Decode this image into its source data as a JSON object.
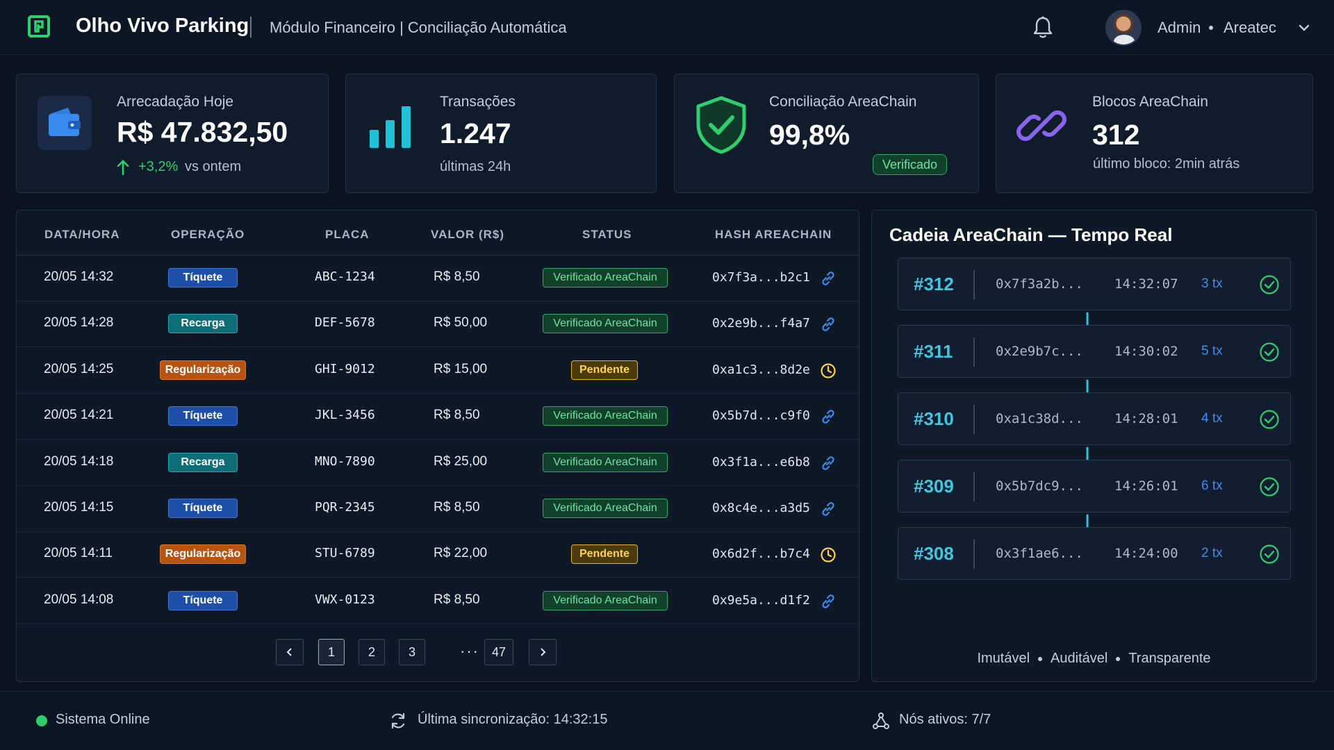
{
  "header": {
    "app_title": "Olho Vivo Parking",
    "subtitle": "Módulo Financeiro | Conciliação Automática",
    "user_name": "Admin",
    "user_org": "Areatec"
  },
  "kpis": {
    "revenue": {
      "label": "Arrecadação Hoje",
      "value": "R$ 47.832,50",
      "delta": "+3,2%",
      "delta_suffix": "vs ontem"
    },
    "transactions": {
      "label": "Transações",
      "value": "1.247",
      "sub": "últimas 24h"
    },
    "reconciliation": {
      "label": "Conciliação AreaChain",
      "value": "99,8%",
      "badge": "Verificado"
    },
    "blocks": {
      "label": "Blocos AreaChain",
      "value": "312",
      "sub": "último bloco: 2min atrás"
    }
  },
  "table": {
    "headers": [
      "DATA/HORA",
      "OPERAÇÃO",
      "PLACA",
      "VALOR (R$)",
      "STATUS",
      "HASH AREACHAIN"
    ],
    "rows": [
      {
        "datetime": "20/05 14:32",
        "operation": "Tíquete",
        "plate": "ABC-1234",
        "value": "R$ 8,50",
        "status": "Verificado AreaChain",
        "hash": "0x7f3a...b2c1"
      },
      {
        "datetime": "20/05 14:28",
        "operation": "Recarga",
        "plate": "DEF-5678",
        "value": "R$ 50,00",
        "status": "Verificado AreaChain",
        "hash": "0x2e9b...f4a7"
      },
      {
        "datetime": "20/05 14:25",
        "operation": "Regularização",
        "plate": "GHI-9012",
        "value": "R$ 15,00",
        "status": "Pendente",
        "hash": "0xa1c3...8d2e"
      },
      {
        "datetime": "20/05 14:21",
        "operation": "Tíquete",
        "plate": "JKL-3456",
        "value": "R$ 8,50",
        "status": "Verificado AreaChain",
        "hash": "0x5b7d...c9f0"
      },
      {
        "datetime": "20/05 14:18",
        "operation": "Recarga",
        "plate": "MNO-7890",
        "value": "R$ 25,00",
        "status": "Verificado AreaChain",
        "hash": "0x3f1a...e6b8"
      },
      {
        "datetime": "20/05 14:15",
        "operation": "Tíquete",
        "plate": "PQR-2345",
        "value": "R$ 8,50",
        "status": "Verificado AreaChain",
        "hash": "0x8c4e...a3d5"
      },
      {
        "datetime": "20/05 14:11",
        "operation": "Regularização",
        "plate": "STU-6789",
        "value": "R$ 22,00",
        "status": "Pendente",
        "hash": "0x6d2f...b7c4"
      },
      {
        "datetime": "20/05 14:08",
        "operation": "Tíquete",
        "plate": "VWX-0123",
        "value": "R$ 8,50",
        "status": "Verificado AreaChain",
        "hash": "0x9e5a...d1f2"
      }
    ],
    "pagination": {
      "pages": [
        "1",
        "2",
        "3"
      ],
      "ellipsis": "···",
      "last": "47",
      "current": "1"
    }
  },
  "chain": {
    "title": "Cadeia AreaChain — Tempo Real",
    "blocks": [
      {
        "number": "#312",
        "hash": "0x7f3a2b...",
        "time": "14:32:07",
        "tx": "3 tx"
      },
      {
        "number": "#311",
        "hash": "0x2e9b7c...",
        "time": "14:30:02",
        "tx": "5 tx"
      },
      {
        "number": "#310",
        "hash": "0xa1c38d...",
        "time": "14:28:01",
        "tx": "4 tx"
      },
      {
        "number": "#309",
        "hash": "0x5b7dc9...",
        "time": "14:26:01",
        "tx": "6 tx"
      },
      {
        "number": "#308",
        "hash": "0x3f1ae6...",
        "time": "14:24:00",
        "tx": "2 tx"
      }
    ],
    "footer": [
      "Imutável",
      "Auditável",
      "Transparente"
    ]
  },
  "footer": {
    "system_status": "Sistema Online",
    "last_sync": "Última sincronização: 14:32:15",
    "nodes": "Nós ativos: 7/7"
  },
  "colors": {
    "accent_green": "#2fcf6f",
    "accent_cyan": "#42c6e0",
    "accent_blue": "#3f8cf0",
    "pending_yellow": "#ffd34d"
  },
  "icons": [
    "logo-icon",
    "bell-icon",
    "wallet-icon",
    "bar-chart-icon",
    "shield-check-icon",
    "chain-link-icon",
    "link-icon",
    "clock-icon",
    "check-circle-icon",
    "sync-icon",
    "network-nodes-icon"
  ]
}
